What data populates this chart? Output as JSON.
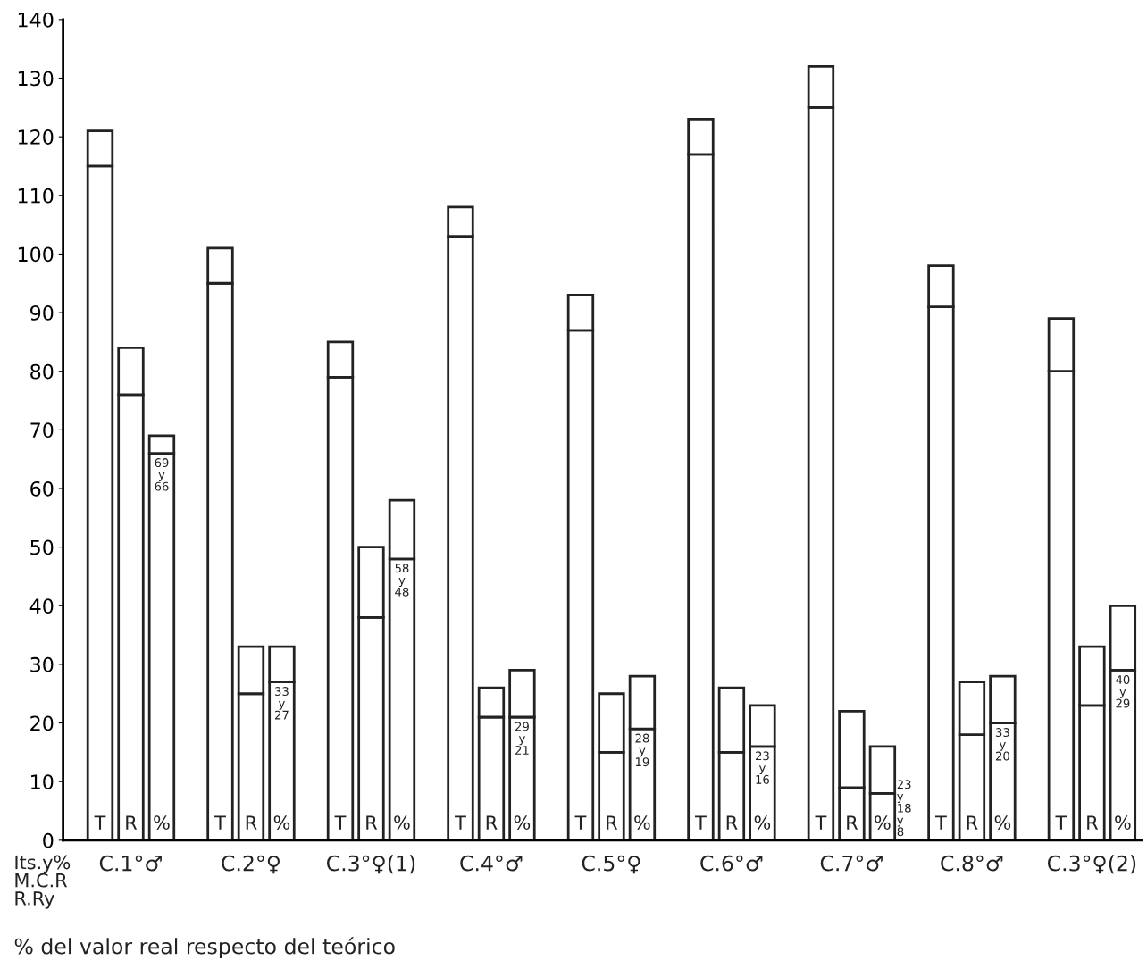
{
  "chart_data": {
    "type": "bar",
    "stacked": true,
    "categories": [
      "T",
      "R",
      "%",
      "T",
      "R",
      "%",
      "T",
      "R",
      "%",
      "T",
      "R",
      "%",
      "T",
      "R",
      "%",
      "T",
      "R",
      "%",
      "T",
      "R",
      "%",
      "T",
      "R",
      "%",
      "T",
      "R",
      "%"
    ],
    "series": [
      {
        "color": "#ffffff",
        "values": [
          115,
          76,
          66,
          95,
          25,
          27,
          79,
          38,
          48,
          103,
          21,
          21,
          87,
          15,
          19,
          117,
          15,
          16,
          125,
          9,
          8,
          91,
          18,
          20,
          80,
          23,
          29
        ],
        "value_labels": [
          null,
          null,
          "69\ny\n66",
          null,
          null,
          "33\ny\n27",
          null,
          null,
          "58\ny\n48",
          null,
          null,
          "29\ny\n21",
          null,
          null,
          "28\ny\n19",
          null,
          null,
          "23\ny\n16",
          null,
          null,
          "23\ny\n18\ny\n8",
          null,
          null,
          "33\ny\n20",
          null,
          null,
          "40\ny\n29"
        ]
      },
      {
        "color": "#ffffff",
        "values": [
          6,
          8,
          3,
          6,
          8,
          6,
          6,
          12,
          10,
          5,
          5,
          8,
          6,
          10,
          9,
          6,
          11,
          7,
          7,
          13,
          8,
          7,
          9,
          8,
          9,
          10,
          11
        ]
      }
    ],
    "ylim": [
      0,
      140
    ],
    "yticks": [
      0,
      10,
      20,
      30,
      40,
      50,
      60,
      70,
      80,
      90,
      100,
      110,
      120,
      130,
      140
    ],
    "grid": false,
    "legend": false,
    "annotations": [
      "C.1°♂",
      "C.2°♀",
      "C.3°♀(1)",
      "C.4°♂",
      "C.5°♀",
      "C.6°♂",
      "C.7°♂",
      "C.8°♂",
      "C.3°♀(2)",
      "Its.y%\nM.C.R\nR.Ry",
      "% del valor real respecto del teórico"
    ]
  }
}
